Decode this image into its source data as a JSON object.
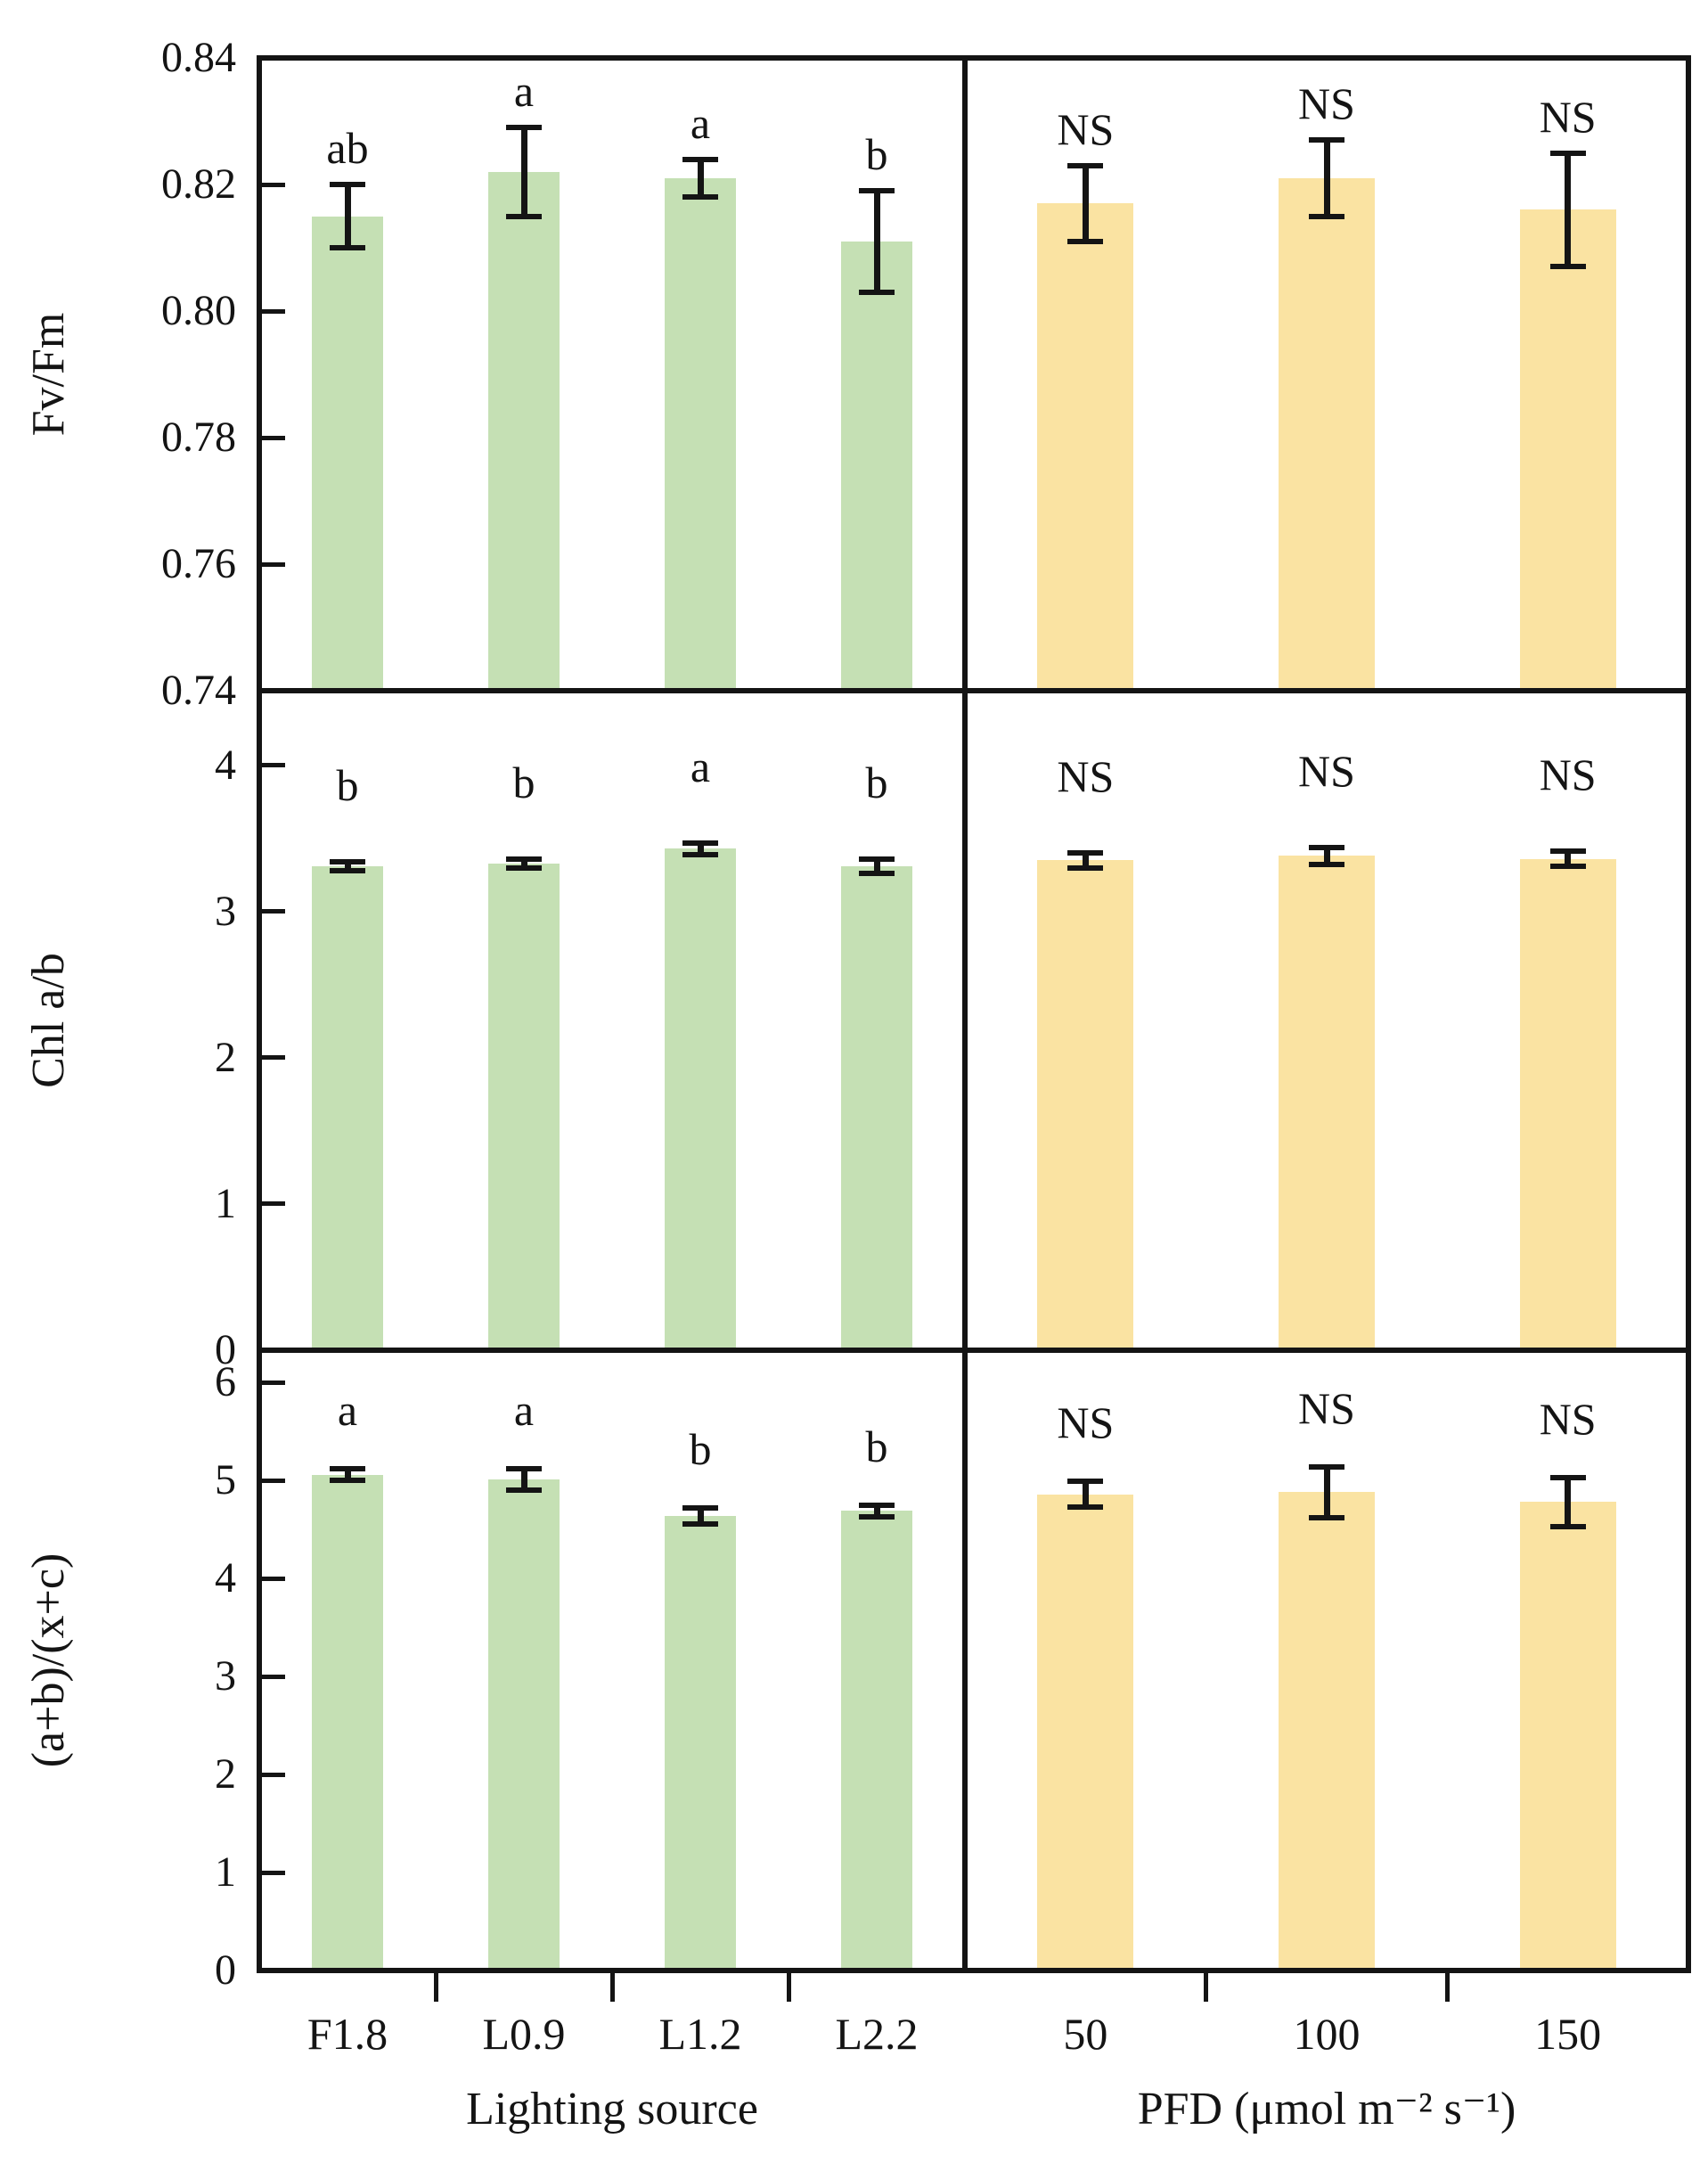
{
  "figure": {
    "background": "#ffffff",
    "axis_color": "#141414",
    "bar_color_lighting": "#c5e0b4",
    "bar_color_pfd": "#fae3a2"
  },
  "chart_data": {
    "type": "bar",
    "layout": {
      "grid": false,
      "legend": "none",
      "rows": 3,
      "cols": 2,
      "note": "3x2 panel grid; left column green bars (Lighting source), right column yellow bars (PFD); black error bars with significance letters above"
    },
    "x_axes": [
      {
        "title": "Lighting source",
        "categories": [
          "F1.8",
          "L0.9",
          "L1.2",
          "L2.2"
        ]
      },
      {
        "title": "PFD (μmol m⁻² s⁻¹)",
        "categories": [
          "50",
          "100",
          "150"
        ]
      }
    ],
    "rows": [
      {
        "ylabel": "Fv/Fm",
        "ylim": [
          0.74,
          0.84
        ],
        "ytick_labels": [
          "0.84",
          "0.82",
          "0.80",
          "0.78",
          "0.76",
          "0.74"
        ],
        "inner_ticks": [
          0.82,
          0.8,
          0.78,
          0.76
        ],
        "panels": [
          {
            "axis": 0,
            "series": "lighting",
            "values": [
              0.815,
              0.822,
              0.821,
              0.811
            ],
            "errors": [
              0.005,
              0.007,
              0.003,
              0.008
            ],
            "labels": [
              "ab",
              "a",
              "a",
              "b"
            ]
          },
          {
            "axis": 1,
            "series": "pfd",
            "values": [
              0.817,
              0.821,
              0.816
            ],
            "errors": [
              0.006,
              0.006,
              0.009
            ],
            "labels": [
              "NS",
              "NS",
              "NS"
            ]
          }
        ]
      },
      {
        "ylabel": "Chl a/b",
        "ylim": [
          0,
          4.51
        ],
        "ytick_labels": [
          "4",
          "3",
          "2",
          "1",
          "0"
        ],
        "inner_ticks": [
          4,
          3,
          2,
          1
        ],
        "panels": [
          {
            "axis": 0,
            "series": "lighting",
            "values": [
              3.31,
              3.33,
              3.43,
              3.31
            ],
            "errors": [
              0.03,
              0.03,
              0.04,
              0.05
            ],
            "labels": [
              "b",
              "b",
              "a",
              "b"
            ]
          },
          {
            "axis": 1,
            "series": "pfd",
            "values": [
              3.35,
              3.38,
              3.36
            ],
            "errors": [
              0.05,
              0.06,
              0.05
            ],
            "labels": [
              "NS",
              "NS",
              "NS"
            ]
          }
        ]
      },
      {
        "ylabel": "(a+b)/(x+c)",
        "ylim": [
          0,
          6.33
        ],
        "ytick_labels": [
          "6",
          "5",
          "4",
          "3",
          "2",
          "1",
          "0"
        ],
        "inner_ticks": [
          6,
          5,
          4,
          3,
          2,
          1
        ],
        "panels": [
          {
            "axis": 0,
            "series": "lighting",
            "values": [
              5.06,
              5.01,
              4.64,
              4.69
            ],
            "errors": [
              0.06,
              0.11,
              0.08,
              0.06
            ],
            "labels": [
              "a",
              "a",
              "b",
              "b"
            ]
          },
          {
            "axis": 1,
            "series": "pfd",
            "values": [
              4.86,
              4.88,
              4.78
            ],
            "errors": [
              0.13,
              0.26,
              0.25
            ],
            "labels": [
              "NS",
              "NS",
              "NS"
            ]
          }
        ]
      }
    ]
  }
}
